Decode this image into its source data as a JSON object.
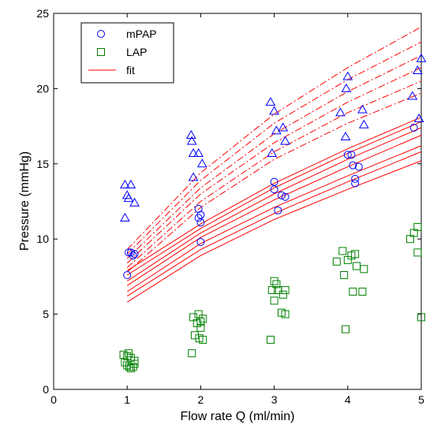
{
  "chart_data": {
    "type": "scatter",
    "xlabel": "Flow rate Q (ml/min)",
    "ylabel": "Pressure (mmHg)",
    "xlim": [
      0,
      5
    ],
    "ylim": [
      0,
      25
    ],
    "xticks": [
      "0",
      "1",
      "2",
      "3",
      "4",
      "5"
    ],
    "yticks": [
      "0",
      "5",
      "10",
      "15",
      "20",
      "25"
    ],
    "grid": false,
    "legend_position": "top-left",
    "legend": [
      {
        "label": "mPAP",
        "marker": "circle",
        "color": "#0000ff"
      },
      {
        "label": "LAP",
        "marker": "square",
        "color": "#008000"
      },
      {
        "label": "fit",
        "marker": "line",
        "color": "#ff0000"
      }
    ],
    "colors": {
      "mpap": "#0000ff",
      "lap": "#008000",
      "fit": "#ff0000",
      "triangles": "#0000ff"
    },
    "series": [
      {
        "name": "mPAP",
        "marker": "circle",
        "points": [
          [
            1.0,
            7.6
          ],
          [
            1.02,
            9.1
          ],
          [
            1.05,
            9.1
          ],
          [
            1.08,
            8.9
          ],
          [
            1.1,
            9.0
          ],
          [
            1.97,
            12.0
          ],
          [
            1.97,
            11.4
          ],
          [
            2.0,
            11.6
          ],
          [
            2.0,
            11.1
          ],
          [
            2.0,
            9.8
          ],
          [
            3.0,
            13.8
          ],
          [
            3.0,
            13.3
          ],
          [
            3.05,
            11.9
          ],
          [
            3.1,
            12.9
          ],
          [
            3.15,
            12.8
          ],
          [
            4.0,
            15.6
          ],
          [
            4.05,
            15.6
          ],
          [
            4.07,
            14.9
          ],
          [
            4.1,
            14.0
          ],
          [
            4.1,
            13.7
          ],
          [
            4.15,
            14.8
          ],
          [
            4.9,
            17.4
          ]
        ]
      },
      {
        "name": "LAP",
        "marker": "square",
        "points": [
          [
            0.95,
            2.3
          ],
          [
            0.97,
            1.8
          ],
          [
            1.0,
            1.6
          ],
          [
            1.0,
            2.2
          ],
          [
            1.02,
            2.4
          ],
          [
            1.03,
            1.5
          ],
          [
            1.05,
            2.1
          ],
          [
            1.05,
            1.4
          ],
          [
            1.08,
            1.5
          ],
          [
            1.1,
            1.9
          ],
          [
            1.1,
            1.7
          ],
          [
            1.88,
            2.4
          ],
          [
            1.9,
            4.8
          ],
          [
            1.92,
            3.6
          ],
          [
            1.95,
            4.4
          ],
          [
            1.97,
            5.0
          ],
          [
            1.98,
            3.4
          ],
          [
            2.0,
            4.5
          ],
          [
            2.0,
            4.1
          ],
          [
            2.03,
            3.3
          ],
          [
            2.03,
            4.7
          ],
          [
            2.95,
            3.3
          ],
          [
            2.97,
            6.6
          ],
          [
            3.0,
            7.2
          ],
          [
            3.0,
            5.9
          ],
          [
            3.03,
            7.0
          ],
          [
            3.05,
            6.6
          ],
          [
            3.1,
            5.1
          ],
          [
            3.12,
            6.3
          ],
          [
            3.15,
            5.0
          ],
          [
            3.15,
            6.6
          ],
          [
            3.85,
            8.5
          ],
          [
            3.93,
            9.2
          ],
          [
            3.95,
            7.6
          ],
          [
            3.97,
            4.0
          ],
          [
            4.0,
            8.6
          ],
          [
            4.05,
            8.9
          ],
          [
            4.07,
            6.5
          ],
          [
            4.1,
            9.0
          ],
          [
            4.12,
            8.2
          ],
          [
            4.2,
            6.5
          ],
          [
            4.22,
            8.0
          ],
          [
            4.85,
            10.0
          ],
          [
            4.9,
            10.4
          ],
          [
            4.95,
            10.8
          ],
          [
            4.95,
            9.1
          ],
          [
            5.0,
            4.8
          ]
        ]
      },
      {
        "name": "",
        "marker": "triangle",
        "points": [
          [
            0.97,
            11.4
          ],
          [
            0.97,
            13.6
          ],
          [
            1.0,
            12.9
          ],
          [
            1.02,
            12.7
          ],
          [
            1.05,
            13.6
          ],
          [
            1.1,
            12.4
          ],
          [
            1.87,
            16.9
          ],
          [
            1.88,
            16.5
          ],
          [
            1.9,
            14.1
          ],
          [
            1.9,
            15.7
          ],
          [
            1.97,
            15.7
          ],
          [
            2.02,
            15.0
          ],
          [
            2.95,
            19.1
          ],
          [
            2.97,
            15.7
          ],
          [
            3.0,
            18.5
          ],
          [
            3.03,
            17.2
          ],
          [
            3.12,
            17.4
          ],
          [
            3.15,
            16.5
          ],
          [
            3.9,
            18.4
          ],
          [
            3.97,
            16.8
          ],
          [
            3.98,
            20.0
          ],
          [
            4.0,
            20.8
          ],
          [
            4.2,
            18.6
          ],
          [
            4.22,
            17.6
          ],
          [
            4.88,
            19.5
          ],
          [
            4.95,
            21.2
          ],
          [
            4.97,
            18.0
          ],
          [
            5.0,
            22.0
          ]
        ]
      }
    ],
    "fit_solid": [
      [
        [
          1,
          7.2
        ],
        [
          2,
          10.4
        ],
        [
          3,
          13.0
        ],
        [
          4,
          15.3
        ],
        [
          5,
          17.4
        ]
      ],
      [
        [
          1,
          6.9
        ],
        [
          2,
          10.1
        ],
        [
          3,
          12.6
        ],
        [
          4,
          14.8
        ],
        [
          5,
          16.9
        ]
      ],
      [
        [
          1,
          6.5
        ],
        [
          2,
          9.7
        ],
        [
          3,
          12.1
        ],
        [
          4,
          14.2
        ],
        [
          5,
          16.2
        ]
      ],
      [
        [
          1,
          6.2
        ],
        [
          2,
          9.3
        ],
        [
          3,
          11.7
        ],
        [
          4,
          13.8
        ],
        [
          5,
          15.8
        ]
      ],
      [
        [
          1,
          5.8
        ],
        [
          2,
          8.9
        ],
        [
          3,
          11.3
        ],
        [
          4,
          13.3
        ],
        [
          5,
          15.2
        ]
      ],
      [
        [
          1,
          7.6
        ],
        [
          2,
          10.7
        ],
        [
          3,
          13.4
        ],
        [
          4,
          15.7
        ],
        [
          5,
          17.8
        ]
      ],
      [
        [
          1,
          7.9
        ],
        [
          2,
          11.0
        ],
        [
          3,
          13.7
        ],
        [
          4,
          16.0
        ],
        [
          5,
          18.1
        ]
      ]
    ],
    "fit_dashed": [
      [
        [
          1,
          9.3
        ],
        [
          2,
          14.4
        ],
        [
          3,
          18.3
        ],
        [
          4,
          21.4
        ],
        [
          5,
          24.1
        ]
      ],
      [
        [
          1,
          9.0
        ],
        [
          2,
          13.9
        ],
        [
          3,
          17.7
        ],
        [
          4,
          20.6
        ],
        [
          5,
          23.1
        ]
      ],
      [
        [
          1,
          8.7
        ],
        [
          2,
          13.4
        ],
        [
          3,
          17.0
        ],
        [
          4,
          19.8
        ],
        [
          5,
          22.2
        ]
      ],
      [
        [
          1,
          8.4
        ],
        [
          2,
          13.0
        ],
        [
          3,
          16.4
        ],
        [
          4,
          19.1
        ],
        [
          5,
          21.4
        ]
      ],
      [
        [
          1,
          8.1
        ],
        [
          2,
          12.5
        ],
        [
          3,
          15.8
        ],
        [
          4,
          18.4
        ],
        [
          5,
          20.5
        ]
      ],
      [
        [
          1,
          7.8
        ],
        [
          2,
          12.1
        ],
        [
          3,
          15.3
        ],
        [
          4,
          17.7
        ],
        [
          5,
          19.7
        ]
      ]
    ]
  }
}
